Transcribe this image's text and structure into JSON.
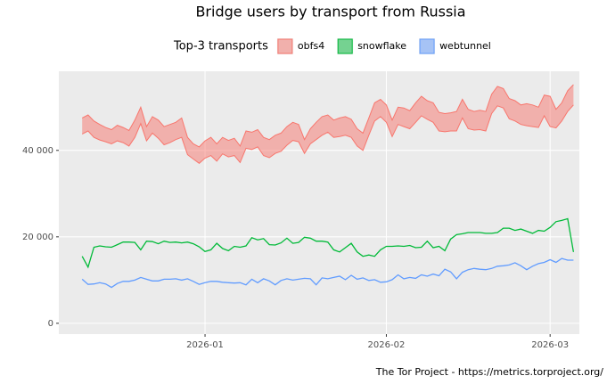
{
  "chart_data": {
    "type": "line",
    "title": "Bridge users by transport from Russia",
    "legend_title": "Top-3 transports",
    "caption": "The Tor Project - https://metrics.torproject.org/",
    "legend_position": "top",
    "grid": true,
    "x": [
      "2025-12-11",
      "2025-12-12",
      "2025-12-13",
      "2025-12-14",
      "2025-12-15",
      "2025-12-16",
      "2025-12-17",
      "2025-12-18",
      "2025-12-19",
      "2025-12-20",
      "2025-12-21",
      "2025-12-22",
      "2025-12-23",
      "2025-12-24",
      "2025-12-25",
      "2025-12-26",
      "2025-12-27",
      "2025-12-28",
      "2025-12-29",
      "2025-12-30",
      "2025-12-31",
      "2026-01-01",
      "2026-01-02",
      "2026-01-03",
      "2026-01-04",
      "2026-01-05",
      "2026-01-06",
      "2026-01-07",
      "2026-01-08",
      "2026-01-09",
      "2026-01-10",
      "2026-01-11",
      "2026-01-12",
      "2026-01-13",
      "2026-01-14",
      "2026-01-15",
      "2026-01-16",
      "2026-01-17",
      "2026-01-18",
      "2026-01-19",
      "2026-01-20",
      "2026-01-21",
      "2026-01-22",
      "2026-01-23",
      "2026-01-24",
      "2026-01-25",
      "2026-01-26",
      "2026-01-27",
      "2026-01-28",
      "2026-01-29",
      "2026-01-30",
      "2026-01-31",
      "2026-02-01",
      "2026-02-02",
      "2026-02-03",
      "2026-02-04",
      "2026-02-05",
      "2026-02-06",
      "2026-02-07",
      "2026-02-08",
      "2026-02-09",
      "2026-02-10",
      "2026-02-11",
      "2026-02-12",
      "2026-02-13",
      "2026-02-14",
      "2026-02-15",
      "2026-02-16",
      "2026-02-17",
      "2026-02-18",
      "2026-02-19",
      "2026-02-20",
      "2026-02-21",
      "2026-02-22",
      "2026-02-23",
      "2026-02-24",
      "2026-02-25",
      "2026-02-26",
      "2026-02-27",
      "2026-02-28",
      "2026-03-01",
      "2026-03-02",
      "2026-03-03",
      "2026-03-04",
      "2026-03-05"
    ],
    "xlim": [
      "2025-12-07",
      "2026-03-06"
    ],
    "xticks": [
      {
        "value": "2026-01-01",
        "label": "2026-01"
      },
      {
        "value": "2026-02-01",
        "label": "2026-02"
      },
      {
        "value": "2026-03-01",
        "label": "2026-03"
      }
    ],
    "ylim": [
      -2500,
      58300
    ],
    "yticks": [
      0,
      {
        "value": 20000,
        "label": "20 000"
      },
      {
        "value": 40000,
        "label": "40 000"
      }
    ],
    "series": [
      {
        "name": "obfs4",
        "color": "#f8766d",
        "low": [
          43800,
          44500,
          43000,
          42400,
          42000,
          41500,
          42200,
          41800,
          41000,
          43000,
          46200,
          42200,
          44000,
          42800,
          41300,
          41800,
          42500,
          43000,
          39000,
          38000,
          37000,
          38200,
          38800,
          37500,
          39200,
          38500,
          38800,
          37200,
          40500,
          40200,
          40800,
          38800,
          38300,
          39300,
          39800,
          41200,
          42300,
          42000,
          39300,
          41500,
          42500,
          43500,
          44200,
          43000,
          43200,
          43500,
          43000,
          41000,
          40000,
          43500,
          46800,
          47800,
          46500,
          43200,
          46000,
          45500,
          45000,
          46500,
          48000,
          47200,
          46500,
          44500,
          44300,
          44500,
          44500,
          47500,
          45000,
          44700,
          44800,
          44500,
          48500,
          50300,
          49800,
          47300,
          46800,
          46000,
          45700,
          45500,
          45300,
          48000,
          45500,
          45200,
          46800,
          49000,
          50500
        ],
        "high": [
          47500,
          48200,
          46800,
          46000,
          45300,
          44800,
          45800,
          45300,
          44600,
          47000,
          50000,
          45500,
          47800,
          47000,
          45500,
          46000,
          46500,
          47500,
          43000,
          41500,
          40800,
          42200,
          43000,
          41500,
          43000,
          42300,
          42800,
          41000,
          44500,
          44200,
          44800,
          43000,
          42500,
          43500,
          44000,
          45500,
          46500,
          46000,
          42500,
          45000,
          46500,
          47800,
          48200,
          47000,
          47500,
          47800,
          47200,
          45000,
          44000,
          47500,
          51000,
          51800,
          50500,
          47000,
          50000,
          49800,
          49200,
          51000,
          52500,
          51500,
          51000,
          48800,
          48500,
          48700,
          49000,
          51800,
          49500,
          49000,
          49300,
          49000,
          53000,
          54800,
          54300,
          52000,
          51500,
          50500,
          50800,
          50500,
          50000,
          52800,
          52500,
          49500,
          51000,
          53800,
          55200
        ]
      },
      {
        "name": "snowflake",
        "color": "#00ba38",
        "values": [
          15500,
          13000,
          17600,
          17900,
          17700,
          17600,
          18200,
          18800,
          18800,
          18700,
          17000,
          19000,
          18900,
          18400,
          19000,
          18700,
          18800,
          18600,
          18800,
          18400,
          17700,
          16600,
          17000,
          18500,
          17300,
          16800,
          17800,
          17600,
          17900,
          19800,
          19300,
          19600,
          18200,
          18100,
          18600,
          19700,
          18500,
          18700,
          19900,
          19700,
          19000,
          19000,
          18800,
          17000,
          16500,
          17500,
          18500,
          16500,
          15500,
          15800,
          15500,
          17000,
          17800,
          17800,
          17900,
          17800,
          18000,
          17500,
          17600,
          19000,
          17500,
          17800,
          16800,
          19500,
          20500,
          20700,
          21000,
          21000,
          21000,
          20800,
          20800,
          21000,
          22000,
          22000,
          21500,
          21800,
          21300,
          20800,
          21500,
          21300,
          22200,
          23500,
          23800,
          24200,
          16500
        ]
      },
      {
        "name": "webtunnel",
        "color": "#619cff",
        "values": [
          10200,
          9000,
          9100,
          9400,
          9100,
          8300,
          9200,
          9700,
          9700,
          10000,
          10600,
          10200,
          9800,
          9800,
          10200,
          10200,
          10300,
          10000,
          10300,
          9700,
          9000,
          9400,
          9700,
          9700,
          9500,
          9400,
          9300,
          9400,
          8900,
          10200,
          9400,
          10300,
          9800,
          8900,
          9900,
          10300,
          10000,
          10200,
          10400,
          10300,
          8900,
          10500,
          10300,
          10600,
          10900,
          10100,
          11100,
          10200,
          10500,
          9900,
          10100,
          9500,
          9600,
          10100,
          11200,
          10300,
          10600,
          10400,
          11200,
          10900,
          11400,
          11000,
          12500,
          11900,
          10300,
          11800,
          12400,
          12700,
          12500,
          12400,
          12700,
          13200,
          13300,
          13500,
          14000,
          13300,
          12400,
          13200,
          13800,
          14100,
          14700,
          14100,
          15000,
          14600,
          14600
        ]
      }
    ]
  }
}
